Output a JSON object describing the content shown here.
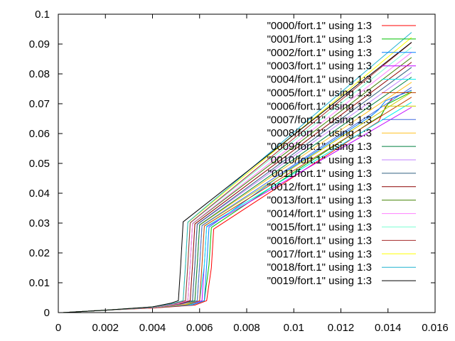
{
  "chart_data": {
    "type": "line",
    "title": "",
    "xlabel": "",
    "ylabel": "",
    "xlim": [
      0,
      0.016
    ],
    "ylim": [
      0,
      0.1
    ],
    "xticks": [
      "0",
      "0.002",
      "0.004",
      "0.006",
      "0.008",
      "0.01",
      "0.012",
      "0.014",
      "0.016"
    ],
    "yticks": [
      "0",
      "0.01",
      "0.02",
      "0.03",
      "0.04",
      "0.05",
      "0.06",
      "0.07",
      "0.08",
      "0.09",
      "0.1"
    ],
    "xtick_values": [
      0,
      0.002,
      0.004,
      0.006,
      0.008,
      0.01,
      0.012,
      0.014,
      0.016
    ],
    "ytick_values": [
      0,
      0.01,
      0.02,
      0.03,
      0.04,
      0.05,
      0.06,
      0.07,
      0.08,
      0.09,
      0.1
    ],
    "grid": false,
    "legend_position": "top-right",
    "series": [
      {
        "name": "\"0000/fort.1\" using 1:3",
        "color": "#ff0000",
        "x": [
          0.0002,
          0.002,
          0.004,
          0.0058,
          0.0063,
          0.0065,
          0.0066,
          0.0099,
          0.0132,
          0.0136,
          0.0139,
          0.0142,
          0.015
        ],
        "y": [
          0,
          0.0008,
          0.0015,
          0.0025,
          0.004,
          0.015,
          0.028,
          0.045,
          0.062,
          0.064,
          0.069,
          0.072,
          0.0745
        ]
      },
      {
        "name": "\"0001/fort.1\" using 1:3",
        "color": "#00c000",
        "x": [
          0.0002,
          0.002,
          0.004,
          0.0057,
          0.0062,
          0.0064,
          0.0065,
          0.0099,
          0.0133,
          0.0137,
          0.014,
          0.015
        ],
        "y": [
          0,
          0.0008,
          0.0016,
          0.0026,
          0.004,
          0.016,
          0.0285,
          0.0465,
          0.064,
          0.066,
          0.07,
          0.074
        ]
      },
      {
        "name": "\"0002/fort.1\" using 1:3",
        "color": "#0080ff",
        "x": [
          0.0002,
          0.002,
          0.004,
          0.0057,
          0.0062,
          0.0063,
          0.0064,
          0.0098,
          0.0133,
          0.0136,
          0.0139,
          0.015
        ],
        "y": [
          0,
          0.0008,
          0.0016,
          0.0026,
          0.004,
          0.016,
          0.0286,
          0.048,
          0.066,
          0.068,
          0.071,
          0.0745
        ]
      },
      {
        "name": "\"0003/fort.1\" using 1:3",
        "color": "#c000ff",
        "x": [
          0.0002,
          0.002,
          0.004,
          0.0056,
          0.0061,
          0.0062,
          0.0063,
          0.015
        ],
        "y": [
          0,
          0.0008,
          0.0016,
          0.0027,
          0.004,
          0.016,
          0.0287,
          0.0688
        ]
      },
      {
        "name": "\"0004/fort.1\" using 1:3",
        "color": "#00eeee",
        "x": [
          0.0002,
          0.002,
          0.004,
          0.0056,
          0.006,
          0.0062,
          0.0063,
          0.015
        ],
        "y": [
          0,
          0.0008,
          0.0016,
          0.0027,
          0.004,
          0.016,
          0.0289,
          0.0705
        ]
      },
      {
        "name": "\"0005/fort.1\" using 1:3",
        "color": "#c04000",
        "x": [
          0.0002,
          0.002,
          0.004,
          0.0055,
          0.006,
          0.0061,
          0.0062,
          0.015
        ],
        "y": [
          0,
          0.0008,
          0.0016,
          0.0027,
          0.004,
          0.016,
          0.029,
          0.0722
        ]
      },
      {
        "name": "\"0006/fort.1\" using 1:3",
        "color": "#c8c800",
        "x": [
          0.0002,
          0.002,
          0.004,
          0.0055,
          0.0059,
          0.006,
          0.0061,
          0.015
        ],
        "y": [
          0,
          0.0008,
          0.0017,
          0.0028,
          0.004,
          0.016,
          0.0291,
          0.0738
        ]
      },
      {
        "name": "\"0007/fort.1\" using 1:3",
        "color": "#4169e1",
        "x": [
          0.0002,
          0.002,
          0.004,
          0.0054,
          0.0059,
          0.006,
          0.0061,
          0.015
        ],
        "y": [
          0,
          0.0008,
          0.0017,
          0.0028,
          0.004,
          0.016,
          0.0292,
          0.0755
        ]
      },
      {
        "name": "\"0008/fort.1\" using 1:3",
        "color": "#ffc020",
        "x": [
          0.0002,
          0.002,
          0.004,
          0.0054,
          0.0058,
          0.0059,
          0.006,
          0.015
        ],
        "y": [
          0,
          0.0008,
          0.0017,
          0.0028,
          0.004,
          0.016,
          0.0293,
          0.0772
        ]
      },
      {
        "name": "\"0009/fort.1\" using 1:3",
        "color": "#008040",
        "x": [
          0.0002,
          0.002,
          0.004,
          0.0053,
          0.0058,
          0.0059,
          0.006,
          0.015
        ],
        "y": [
          0,
          0.0008,
          0.0017,
          0.0029,
          0.004,
          0.016,
          0.0294,
          0.0789
        ]
      },
      {
        "name": "\"0010/fort.1\" using 1:3",
        "color": "#c080ff",
        "x": [
          0.0002,
          0.002,
          0.004,
          0.0053,
          0.0057,
          0.0058,
          0.0059,
          0.015
        ],
        "y": [
          0,
          0.0008,
          0.0017,
          0.0029,
          0.004,
          0.016,
          0.0295,
          0.0805
        ]
      },
      {
        "name": "\"0011/fort.1\" using 1:3",
        "color": "#306080",
        "x": [
          0.0002,
          0.002,
          0.004,
          0.0052,
          0.0057,
          0.0058,
          0.0059,
          0.015
        ],
        "y": [
          0,
          0.0008,
          0.0018,
          0.0029,
          0.004,
          0.016,
          0.0296,
          0.0822
        ]
      },
      {
        "name": "\"0012/fort.1\" using 1:3",
        "color": "#8b0000",
        "x": [
          0.0002,
          0.002,
          0.004,
          0.0052,
          0.0056,
          0.0057,
          0.0058,
          0.015
        ],
        "y": [
          0,
          0.0008,
          0.0018,
          0.003,
          0.004,
          0.016,
          0.0297,
          0.0839
        ]
      },
      {
        "name": "\"0013/fort.1\" using 1:3",
        "color": "#408000",
        "x": [
          0.0002,
          0.002,
          0.004,
          0.0051,
          0.0055,
          0.0056,
          0.0057,
          0.015
        ],
        "y": [
          0,
          0.0008,
          0.0018,
          0.003,
          0.004,
          0.016,
          0.0298,
          0.0855
        ]
      },
      {
        "name": "\"0014/fort.1\" using 1:3",
        "color": "#ff80ff",
        "x": [
          0.0002,
          0.002,
          0.004,
          0.0051,
          0.0055,
          0.0056,
          0.0057,
          0.015
        ],
        "y": [
          0,
          0.0008,
          0.0018,
          0.003,
          0.004,
          0.016,
          0.0299,
          0.0872
        ]
      },
      {
        "name": "\"0015/fort.1\" using 1:3",
        "color": "#7fffd4",
        "x": [
          0.0002,
          0.002,
          0.004,
          0.005,
          0.0054,
          0.0055,
          0.0056,
          0.015
        ],
        "y": [
          0,
          0.0008,
          0.0018,
          0.0031,
          0.004,
          0.016,
          0.03,
          0.0889
        ]
      },
      {
        "name": "\"0016/fort.1\" using 1:3",
        "color": "#a52a2a",
        "x": [
          0.0002,
          0.002,
          0.004,
          0.005,
          0.0054,
          0.0055,
          0.0056,
          0.015
        ],
        "y": [
          0,
          0.0008,
          0.0019,
          0.0031,
          0.004,
          0.016,
          0.0301,
          0.0905
        ]
      },
      {
        "name": "\"0017/fort.1\" using 1:3",
        "color": "#ffff00",
        "x": [
          0.0002,
          0.002,
          0.004,
          0.0049,
          0.0053,
          0.0054,
          0.0055,
          0.015
        ],
        "y": [
          0,
          0.0008,
          0.0019,
          0.0031,
          0.004,
          0.016,
          0.0302,
          0.0922
        ]
      },
      {
        "name": "\"0018/fort.1\" using 1:3",
        "color": "#20b2d0",
        "x": [
          0.0002,
          0.002,
          0.004,
          0.0049,
          0.0053,
          0.0054,
          0.0055,
          0.015
        ],
        "y": [
          0,
          0.0008,
          0.0019,
          0.0031,
          0.004,
          0.016,
          0.0303,
          0.0939
        ]
      },
      {
        "name": "\"0019/fort.1\" using 1:3",
        "color": "#000000",
        "x": [
          0.0002,
          0.002,
          0.004,
          0.0048,
          0.0051,
          0.0052,
          0.0053,
          0.015
        ],
        "y": [
          0,
          0.0008,
          0.0019,
          0.0032,
          0.004,
          0.016,
          0.0304,
          0.0906
        ]
      }
    ]
  }
}
